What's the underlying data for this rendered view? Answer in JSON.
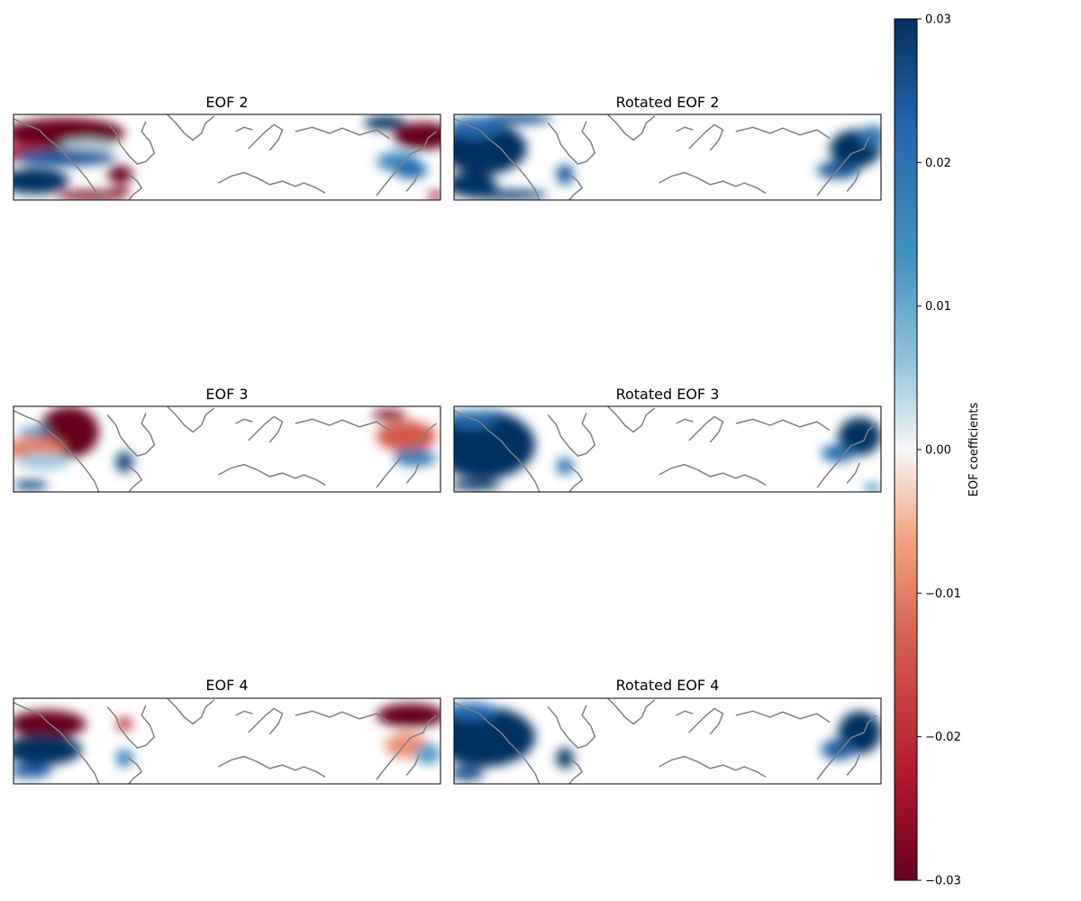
{
  "chart_data": [
    {
      "type": "heatmap",
      "title": "EOF 2",
      "colormap": "RdBu",
      "vmin": -0.03,
      "vmax": 0.03,
      "blobs": [
        {
          "lon": 0.12,
          "lat": 0.78,
          "rx": 0.14,
          "ry": 0.18,
          "value": -0.03
        },
        {
          "lon": 0.02,
          "lat": 0.55,
          "rx": 0.08,
          "ry": 0.1,
          "value": -0.022
        },
        {
          "lon": 0.17,
          "lat": 0.62,
          "rx": 0.06,
          "ry": 0.08,
          "value": 0.003
        },
        {
          "lon": 0.12,
          "lat": 0.5,
          "rx": 0.12,
          "ry": 0.1,
          "value": 0.025
        },
        {
          "lon": 0.05,
          "lat": 0.22,
          "rx": 0.08,
          "ry": 0.15,
          "value": 0.03
        },
        {
          "lon": 0.18,
          "lat": 0.05,
          "rx": 0.08,
          "ry": 0.06,
          "value": -0.028
        },
        {
          "lon": 0.25,
          "lat": 0.3,
          "rx": 0.03,
          "ry": 0.1,
          "value": -0.03
        },
        {
          "lon": 0.25,
          "lat": 0.1,
          "rx": 0.02,
          "ry": 0.06,
          "value": -0.028
        },
        {
          "lon": 0.96,
          "lat": 0.75,
          "rx": 0.07,
          "ry": 0.16,
          "value": -0.03
        },
        {
          "lon": 0.87,
          "lat": 0.9,
          "rx": 0.05,
          "ry": 0.08,
          "value": 0.03
        },
        {
          "lon": 0.9,
          "lat": 0.45,
          "rx": 0.05,
          "ry": 0.12,
          "value": 0.014
        },
        {
          "lon": 0.93,
          "lat": 0.35,
          "rx": 0.04,
          "ry": 0.1,
          "value": 0.022
        },
        {
          "lon": 0.99,
          "lat": 0.05,
          "rx": 0.02,
          "ry": 0.05,
          "value": -0.025
        }
      ]
    },
    {
      "type": "heatmap",
      "title": "Rotated EOF 2",
      "colormap": "RdBu",
      "vmin": -0.03,
      "vmax": 0.03,
      "blobs": [
        {
          "lon": 0.07,
          "lat": 0.6,
          "rx": 0.1,
          "ry": 0.3,
          "value": 0.03
        },
        {
          "lon": 0.05,
          "lat": 0.85,
          "rx": 0.06,
          "ry": 0.12,
          "value": 0.022
        },
        {
          "lon": 0.15,
          "lat": 0.95,
          "rx": 0.08,
          "ry": 0.06,
          "value": 0.026
        },
        {
          "lon": 0.04,
          "lat": 0.18,
          "rx": 0.06,
          "ry": 0.14,
          "value": 0.03
        },
        {
          "lon": 0.12,
          "lat": 0.06,
          "rx": 0.1,
          "ry": 0.06,
          "value": 0.028
        },
        {
          "lon": 0.26,
          "lat": 0.3,
          "rx": 0.02,
          "ry": 0.12,
          "value": 0.024
        },
        {
          "lon": 0.94,
          "lat": 0.6,
          "rx": 0.06,
          "ry": 0.22,
          "value": 0.03
        },
        {
          "lon": 0.98,
          "lat": 0.75,
          "rx": 0.03,
          "ry": 0.12,
          "value": 0.02
        },
        {
          "lon": 0.9,
          "lat": 0.35,
          "rx": 0.05,
          "ry": 0.1,
          "value": 0.025
        }
      ]
    },
    {
      "type": "heatmap",
      "title": "EOF 3",
      "colormap": "RdBu",
      "vmin": -0.03,
      "vmax": 0.03,
      "blobs": [
        {
          "lon": 0.13,
          "lat": 0.7,
          "rx": 0.07,
          "ry": 0.3,
          "value": -0.03
        },
        {
          "lon": 0.05,
          "lat": 0.7,
          "rx": 0.04,
          "ry": 0.05,
          "value": 0.016
        },
        {
          "lon": 0.05,
          "lat": 0.5,
          "rx": 0.07,
          "ry": 0.14,
          "value": -0.01
        },
        {
          "lon": 0.07,
          "lat": 0.35,
          "rx": 0.06,
          "ry": 0.1,
          "value": 0.005
        },
        {
          "lon": 0.04,
          "lat": 0.08,
          "rx": 0.04,
          "ry": 0.06,
          "value": 0.026
        },
        {
          "lon": 0.26,
          "lat": 0.35,
          "rx": 0.02,
          "ry": 0.12,
          "value": 0.028
        },
        {
          "lon": 0.92,
          "lat": 0.65,
          "rx": 0.07,
          "ry": 0.18,
          "value": -0.014
        },
        {
          "lon": 0.94,
          "lat": 0.4,
          "rx": 0.05,
          "ry": 0.1,
          "value": 0.018
        },
        {
          "lon": 0.88,
          "lat": 0.9,
          "rx": 0.04,
          "ry": 0.06,
          "value": -0.028
        }
      ]
    },
    {
      "type": "heatmap",
      "title": "Rotated EOF 3",
      "colormap": "RdBu",
      "vmin": -0.03,
      "vmax": 0.03,
      "blobs": [
        {
          "lon": 0.07,
          "lat": 0.55,
          "rx": 0.12,
          "ry": 0.4,
          "value": 0.03
        },
        {
          "lon": 0.04,
          "lat": 0.85,
          "rx": 0.06,
          "ry": 0.1,
          "value": 0.022
        },
        {
          "lon": 0.05,
          "lat": 0.08,
          "rx": 0.06,
          "ry": 0.06,
          "value": 0.03
        },
        {
          "lon": 0.26,
          "lat": 0.3,
          "rx": 0.02,
          "ry": 0.1,
          "value": 0.02
        },
        {
          "lon": 0.95,
          "lat": 0.65,
          "rx": 0.05,
          "ry": 0.22,
          "value": 0.03
        },
        {
          "lon": 0.9,
          "lat": 0.45,
          "rx": 0.04,
          "ry": 0.1,
          "value": 0.022
        },
        {
          "lon": 0.98,
          "lat": 0.05,
          "rx": 0.02,
          "ry": 0.05,
          "value": 0.016
        }
      ]
    },
    {
      "type": "heatmap",
      "title": "EOF 4",
      "colormap": "RdBu",
      "vmin": -0.03,
      "vmax": 0.03,
      "blobs": [
        {
          "lon": 0.08,
          "lat": 0.7,
          "rx": 0.09,
          "ry": 0.16,
          "value": -0.03
        },
        {
          "lon": 0.07,
          "lat": 0.4,
          "rx": 0.09,
          "ry": 0.18,
          "value": 0.03
        },
        {
          "lon": 0.04,
          "lat": 0.15,
          "rx": 0.05,
          "ry": 0.08,
          "value": 0.024
        },
        {
          "lon": 0.26,
          "lat": 0.3,
          "rx": 0.02,
          "ry": 0.1,
          "value": 0.018
        },
        {
          "lon": 0.26,
          "lat": 0.7,
          "rx": 0.02,
          "ry": 0.08,
          "value": -0.018
        },
        {
          "lon": 0.93,
          "lat": 0.8,
          "rx": 0.08,
          "ry": 0.14,
          "value": -0.03
        },
        {
          "lon": 0.92,
          "lat": 0.45,
          "rx": 0.05,
          "ry": 0.15,
          "value": -0.008
        },
        {
          "lon": 0.97,
          "lat": 0.35,
          "rx": 0.03,
          "ry": 0.12,
          "value": 0.012
        }
      ]
    },
    {
      "type": "heatmap",
      "title": "Rotated EOF 4",
      "colormap": "RdBu",
      "vmin": -0.03,
      "vmax": 0.03,
      "blobs": [
        {
          "lon": 0.07,
          "lat": 0.55,
          "rx": 0.12,
          "ry": 0.35,
          "value": 0.03
        },
        {
          "lon": 0.04,
          "lat": 0.85,
          "rx": 0.06,
          "ry": 0.1,
          "value": 0.022
        },
        {
          "lon": 0.03,
          "lat": 0.12,
          "rx": 0.04,
          "ry": 0.08,
          "value": 0.026
        },
        {
          "lon": 0.26,
          "lat": 0.3,
          "rx": 0.02,
          "ry": 0.12,
          "value": 0.03
        },
        {
          "lon": 0.95,
          "lat": 0.6,
          "rx": 0.05,
          "ry": 0.25,
          "value": 0.03
        },
        {
          "lon": 0.9,
          "lat": 0.4,
          "rx": 0.04,
          "ry": 0.12,
          "value": 0.024
        }
      ]
    }
  ],
  "colorbar": {
    "label": "EOF coefficients",
    "ticks": [
      0.03,
      0.02,
      0.01,
      0.0,
      -0.01,
      -0.02,
      -0.03
    ],
    "tick_labels": [
      "0.03",
      "0.02",
      "0.01",
      "0.00",
      "−0.01",
      "−0.02",
      "−0.03"
    ]
  },
  "colors": {
    "coastline": "#808080",
    "frame": "#000000"
  }
}
